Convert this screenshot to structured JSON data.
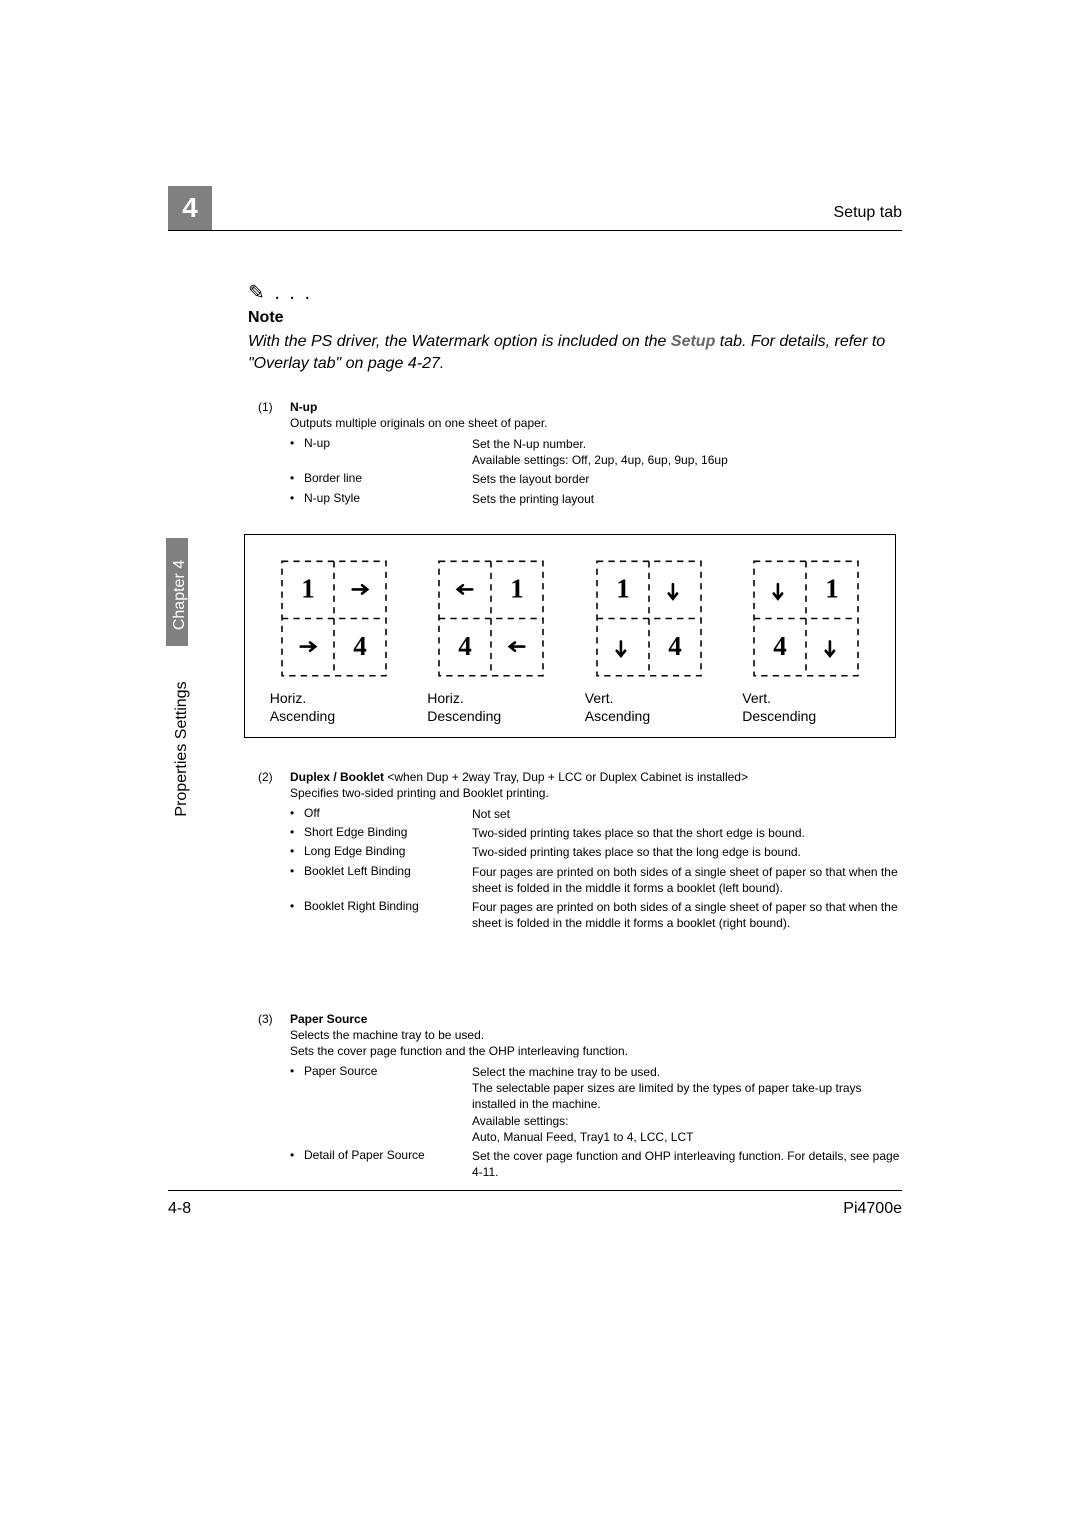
{
  "header": {
    "tab_name": "Setup tab",
    "chapter_number": "4"
  },
  "sidebar": {
    "chapter_label": "Chapter 4",
    "section_label": "Properties Settings"
  },
  "note": {
    "icon_text": "✎ . . .",
    "title": "Note",
    "line_prefix": "With the PS driver, the Watermark option is included on the ",
    "link": "Setup",
    "line_suffix": " tab. For details, refer to \"Overlay tab\" on page 4-27."
  },
  "nup": {
    "num": "(1)",
    "title": "N-up",
    "desc": "Outputs multiple originals on one sheet of paper.",
    "items": [
      {
        "term": "N-up",
        "desc": "Set the N-up number.\nAvailable settings: Off, 2up, 4up, 6up, 9up, 16up"
      },
      {
        "term": "Border line",
        "desc": "Sets the layout border"
      },
      {
        "term": "N-up Style",
        "desc": "Sets the printing layout"
      }
    ]
  },
  "diagrams": [
    {
      "label": "Horiz.\nAscending",
      "n1_pos": "tl",
      "n4_pos": "br",
      "a1": "right",
      "a4": "right",
      "a1_at": "tr",
      "a4_at": "bl"
    },
    {
      "label": "Horiz.\nDescending",
      "n1_pos": "tr",
      "n4_pos": "bl",
      "a1": "left",
      "a4": "left",
      "a1_at": "tl",
      "a4_at": "br"
    },
    {
      "label": "Vert.\nAscending",
      "n1_pos": "tl",
      "n4_pos": "br",
      "a1": "down",
      "a4": "down",
      "a1_at": "tr",
      "a4_at": "bl"
    },
    {
      "label": "Vert.\nDescending",
      "n1_pos": "tr",
      "n4_pos": "bl",
      "a1": "down",
      "a4": "down",
      "a1_at": "tl",
      "a4_at": "br"
    }
  ],
  "duplex": {
    "num": "(2)",
    "title": "Duplex / Booklet",
    "cond": " <when Dup + 2way Tray, Dup + LCC or Duplex Cabinet is installed>",
    "desc": "Specifies two-sided printing and Booklet printing.",
    "items": [
      {
        "term": "Off",
        "desc": "Not set"
      },
      {
        "term": "Short Edge Binding",
        "desc": "Two-sided printing takes place so that the short edge is bound."
      },
      {
        "term": "Long Edge Binding",
        "desc": "Two-sided printing takes place so that the long edge is bound."
      },
      {
        "term": "Booklet Left Binding",
        "desc": "Four pages are printed on both sides of a single sheet of paper so that when the sheet is folded in the middle it forms a booklet (left bound)."
      },
      {
        "term": "Booklet Right Binding",
        "desc": "Four pages are printed on both sides of a single sheet of paper so that when the sheet is folded in the middle it forms a booklet (right bound)."
      }
    ]
  },
  "paper": {
    "num": "(3)",
    "title": "Paper Source",
    "desc1": "Selects the machine tray to be used.",
    "desc2": "Sets the cover page function and the OHP interleaving function.",
    "items": [
      {
        "term": "Paper Source",
        "desc": "Select the machine tray to be used.\nThe selectable paper sizes are limited by the types of paper take-up trays installed in the machine.\nAvailable settings:\nAuto, Manual Feed, Tray1 to 4, LCC, LCT"
      },
      {
        "term": "Detail of Paper Source",
        "desc": "Set the cover page function and OHP interleaving function. For details, see page 4-11."
      }
    ]
  },
  "footer": {
    "page": "4-8",
    "model": "Pi4700e"
  },
  "styling": {
    "chapter_bg": "#808080",
    "text_color": "#000000",
    "page_bg": "#ffffff",
    "font_family": "Arial, Helvetica, sans-serif",
    "body_fontsize": 12,
    "note_fontsize": 16,
    "header_fontsize": 16
  }
}
